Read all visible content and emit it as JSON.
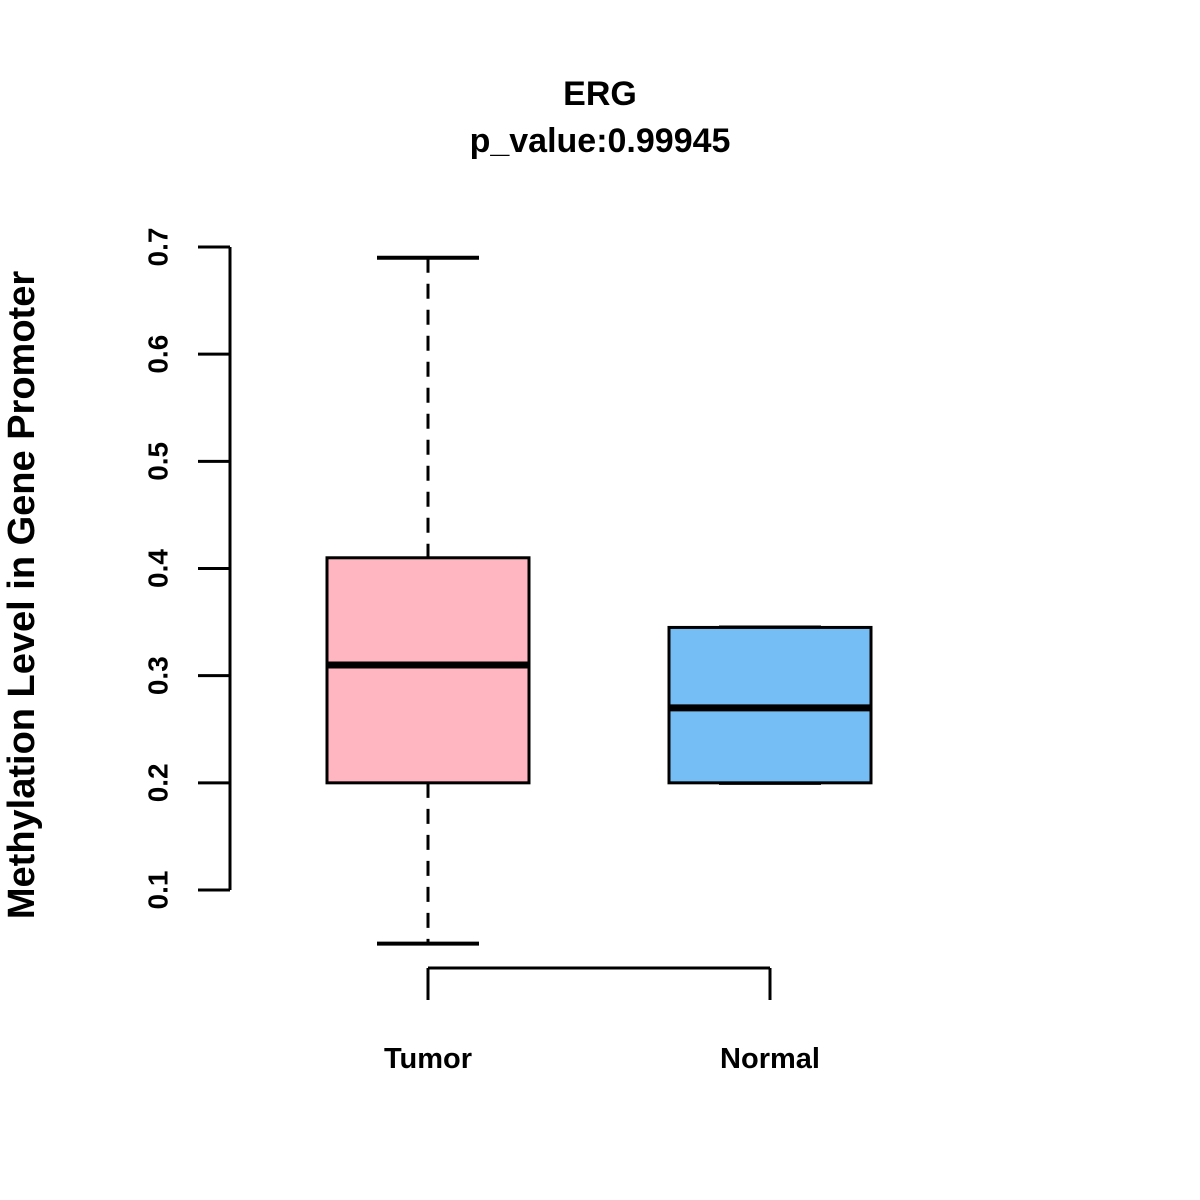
{
  "title": "ERG",
  "subtitle": "p_value:0.99945",
  "chart_data": {
    "type": "boxplot",
    "title": "ERG",
    "subtitle": "p_value:0.99945",
    "xlabel": "",
    "ylabel": "Methylation Level in Gene Promoter",
    "categories": [
      "Tumor",
      "Normal"
    ],
    "yticks": [
      0.1,
      0.2,
      0.3,
      0.4,
      0.5,
      0.6,
      0.7
    ],
    "ylim": [
      0.05,
      0.7
    ],
    "grid": false,
    "legend": "none",
    "boxes": [
      {
        "name": "Tumor",
        "whisker_low": 0.05,
        "q1": 0.2,
        "median": 0.31,
        "q3": 0.41,
        "whisker_high": 0.69,
        "fill": "#FFB6C1"
      },
      {
        "name": "Normal",
        "whisker_low": 0.2,
        "q1": 0.2,
        "median": 0.27,
        "q3": 0.345,
        "whisker_high": 0.345,
        "fill": "#75BEF5"
      }
    ],
    "colors": {
      "tumor_fill": "#FFB6C1",
      "normal_fill": "#75BEF5",
      "stroke": "#000000",
      "background": "#FFFFFF"
    }
  }
}
